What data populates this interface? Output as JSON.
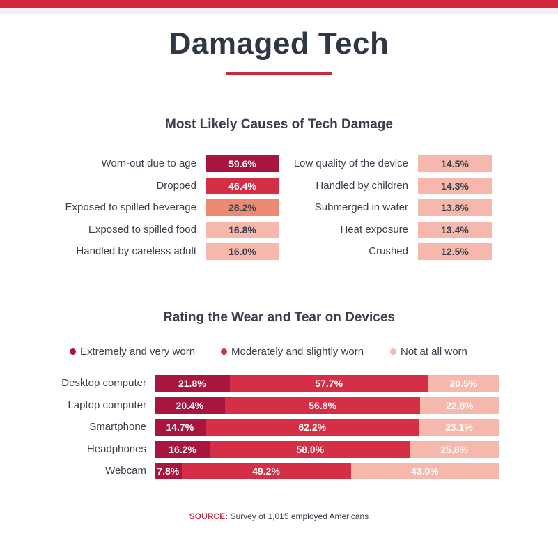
{
  "header": {
    "title": "Damaged Tech"
  },
  "causes": {
    "title": "Most Likely Causes of Tech Damage",
    "colors": {
      "dark": "#a8153f",
      "medium": "#d42f47",
      "orange": "#eb8a72",
      "light": "#f6b8ad",
      "text_dark": "#3a3f4b",
      "text_light": "#ffffff"
    }
  },
  "wear": {
    "title": "Rating the Wear and Tear on Devices",
    "legend": [
      {
        "label": "Extremely and very worn",
        "color": "#a8153f"
      },
      {
        "label": "Moderately and slightly worn",
        "color": "#d42f47"
      },
      {
        "label": "Not at all worn",
        "color": "#f6b8ad"
      }
    ]
  },
  "chart_data": [
    {
      "type": "table",
      "title": "Most Likely Causes of Tech Damage",
      "unit": "%",
      "items": [
        {
          "label": "Worn-out due to age",
          "value": 59.6,
          "display": "59.6%"
        },
        {
          "label": "Dropped",
          "value": 46.4,
          "display": "46.4%"
        },
        {
          "label": "Exposed to spilled beverage",
          "value": 28.2,
          "display": "28.2%"
        },
        {
          "label": "Exposed to spilled food",
          "value": 16.8,
          "display": "16.8%"
        },
        {
          "label": "Handled by careless adult",
          "value": 16.0,
          "display": "16.0%"
        },
        {
          "label": "Low quality of the device",
          "value": 14.5,
          "display": "14.5%"
        },
        {
          "label": "Handled by children",
          "value": 14.3,
          "display": "14.3%"
        },
        {
          "label": "Submerged in water",
          "value": 13.8,
          "display": "13.8%"
        },
        {
          "label": "Heat exposure",
          "value": 13.4,
          "display": "13.4%"
        },
        {
          "label": "Crushed",
          "value": 12.5,
          "display": "12.5%"
        }
      ]
    },
    {
      "type": "bar",
      "stacked": true,
      "orientation": "horizontal",
      "title": "Rating the Wear and Tear on Devices",
      "categories": [
        "Desktop computer",
        "Laptop computer",
        "Smartphone",
        "Headphones",
        "Webcam"
      ],
      "series": [
        {
          "name": "Extremely and very worn",
          "color": "#a8153f",
          "values": [
            21.8,
            20.4,
            14.7,
            16.2,
            7.8
          ],
          "labels": [
            "21.8%",
            "20.4%",
            "14.7%",
            "16.2%",
            "7.8%"
          ]
        },
        {
          "name": "Moderately and slightly worn",
          "color": "#d42f47",
          "values": [
            57.7,
            56.8,
            62.2,
            58.0,
            49.2
          ],
          "labels": [
            "57.7%",
            "56.8%",
            "62.2%",
            "58.0%",
            "49.2%"
          ]
        },
        {
          "name": "Not at all worn",
          "color": "#f6b8ad",
          "values": [
            20.5,
            22.8,
            23.1,
            25.8,
            43.0
          ],
          "labels": [
            "20.5%",
            "22.8%",
            "23.1%",
            "25.8%",
            "43.0%"
          ]
        }
      ],
      "xlim": [
        0,
        100
      ],
      "legend": "top"
    }
  ],
  "source": {
    "key": "SOURCE:",
    "text": " Survey of 1,015 employed Americans"
  }
}
